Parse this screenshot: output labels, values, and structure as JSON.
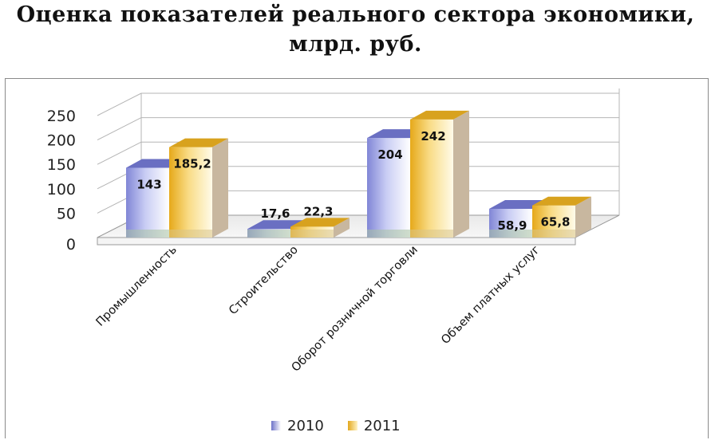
{
  "title": {
    "line1": "Оценка показателей реального сектора экономики,",
    "line2": "млрд. руб."
  },
  "chart_data": {
    "type": "bar",
    "title": "Оценка показателей реального сектора экономики, млрд. руб.",
    "xlabel": "",
    "ylabel": "",
    "ylim": [
      0,
      250
    ],
    "yticks": [
      "0",
      "50",
      "100",
      "150",
      "200",
      "250"
    ],
    "ytick_values": [
      0,
      50,
      100,
      150,
      200,
      250
    ],
    "grid": true,
    "legend_position": "bottom",
    "categories": [
      "Промышленность",
      "Строительство",
      "Оборот розничной торговли",
      "Объем платных услуг"
    ],
    "series": [
      {
        "name": "2010",
        "values": [
          143,
          17.6,
          204,
          58.9
        ],
        "labels": [
          "143",
          "17,6",
          "204",
          "58,9"
        ],
        "color": "#6d72c8"
      },
      {
        "name": "2011",
        "values": [
          185.2,
          22.3,
          242,
          65.8
        ],
        "labels": [
          "185,2",
          "22,3",
          "242",
          "65,8"
        ],
        "color": "#e3a81e"
      }
    ]
  },
  "legend": {
    "label_2010": "2010",
    "label_2011": "2011"
  }
}
